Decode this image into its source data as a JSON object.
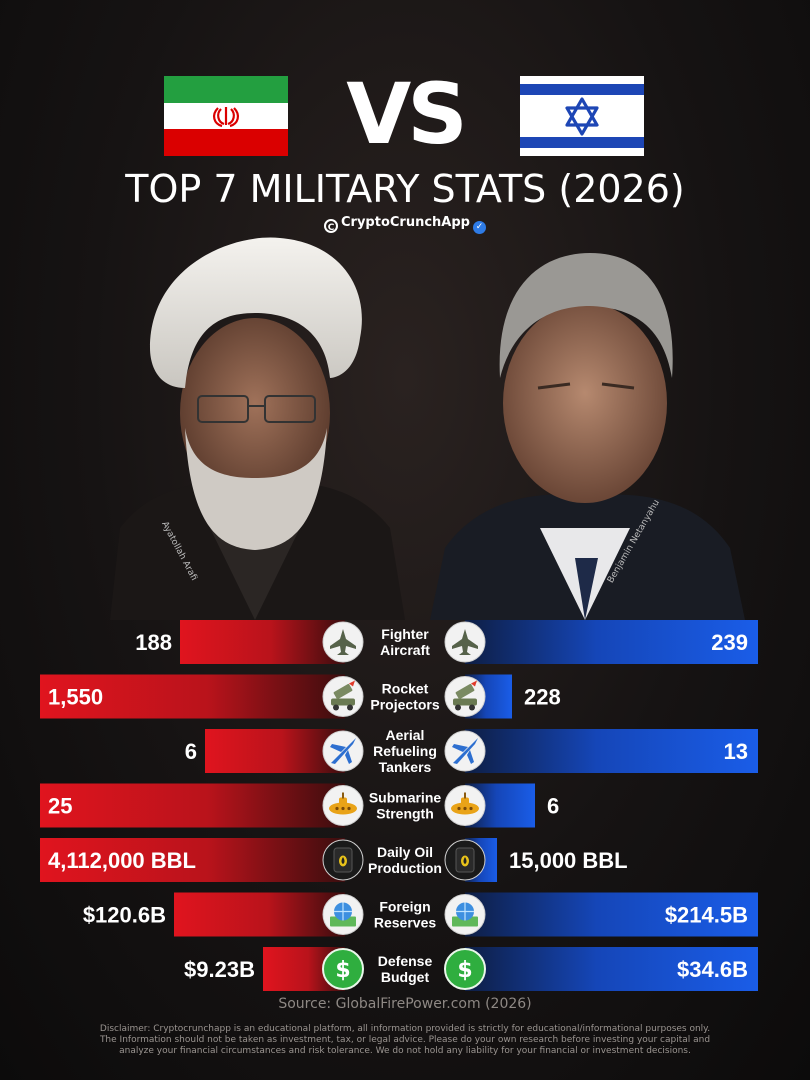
{
  "header": {
    "vs_label": "VS",
    "title": "TOP 7 MILITARY STATS (2026)",
    "brand": "CryptoCrunchApp"
  },
  "portraits": {
    "left_name": "Ayatollah Arafi",
    "right_name": "Benjamin Netanyahu"
  },
  "colors": {
    "iran_bar": "#e0141e",
    "israel_bar": "#1a5de8",
    "background": "#141111"
  },
  "chart_data": {
    "type": "bar",
    "layout": "diverging",
    "series": [
      {
        "name": "Iran",
        "color": "#e0141e"
      },
      {
        "name": "Israel",
        "color": "#1a5de8"
      }
    ],
    "rows": [
      {
        "category": [
          "Fighter",
          "Aircraft"
        ],
        "icon": "fighter-jet-icon",
        "left_value": 188,
        "left_label": "188",
        "left_fill": 0.54,
        "right_value": 239,
        "right_label": "239",
        "right_fill": 1.0
      },
      {
        "category": [
          "Rocket",
          "Projectors"
        ],
        "icon": "rocket-launcher-icon",
        "left_value": 1550,
        "left_label": "1,550",
        "left_fill": 1.0,
        "right_value": 228,
        "right_label": "228",
        "right_fill": 0.16
      },
      {
        "category": [
          "Aerial",
          "Refueling",
          "Tankers"
        ],
        "icon": "tanker-plane-icon",
        "left_value": 6,
        "left_label": "6",
        "left_fill": 0.46,
        "right_value": 13,
        "right_label": "13",
        "right_fill": 1.0
      },
      {
        "category": [
          "Submarine",
          "Strength"
        ],
        "icon": "submarine-icon",
        "left_value": 25,
        "left_label": "25",
        "left_fill": 1.0,
        "right_value": 6,
        "right_label": "6",
        "right_fill": 0.24
      },
      {
        "category": [
          "Daily Oil",
          "Production"
        ],
        "icon": "oil-barrel-icon",
        "left_value": 4112000,
        "left_label": "4,112,000 BBL",
        "left_fill": 1.0,
        "right_value": 15000,
        "right_label": "15,000 BBL",
        "right_fill": 0.11
      },
      {
        "category": [
          "Foreign",
          "Reserves"
        ],
        "icon": "money-globe-icon",
        "left_value": 120.6,
        "left_label": "$120.6B",
        "left_fill": 0.56,
        "right_value": 214.5,
        "right_label": "$214.5B",
        "right_fill": 1.0
      },
      {
        "category": [
          "Defense",
          "Budget"
        ],
        "icon": "dollar-coin-icon",
        "left_value": 9.23,
        "left_label": "$9.23B",
        "left_fill": 0.27,
        "right_value": 34.6,
        "right_label": "$34.6B",
        "right_fill": 1.0
      }
    ]
  },
  "footer": {
    "source": "Source: GlobalFirePower.com (2026)",
    "disclaimer_lines": [
      "Disclaimer: Cryptocrunchapp is an educational platform, all information provided is strictly for educational/informational purposes only.",
      "The Information should not be taken as investment, tax, or legal advice. Please do your own research before investing your capital and",
      "analyze your financial circumstances and risk tolerance. We do not hold any liability for your financial or investment decisions."
    ]
  }
}
